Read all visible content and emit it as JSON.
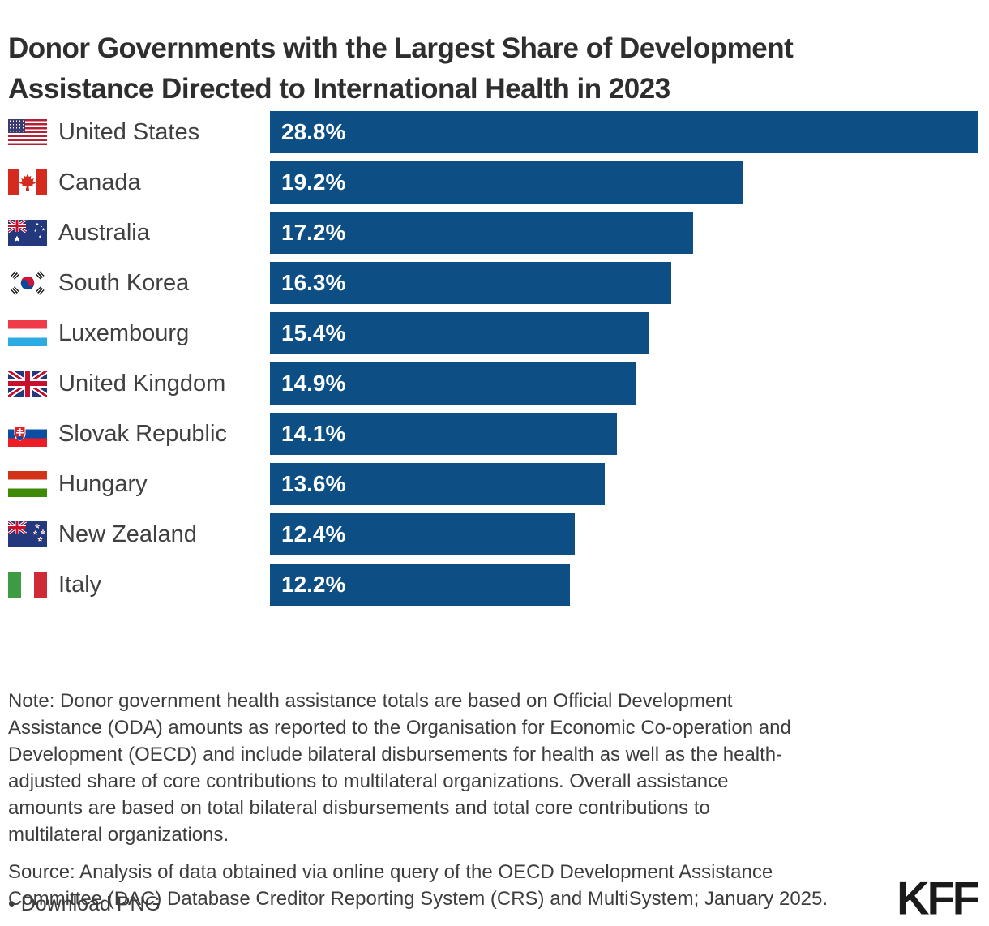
{
  "title": "Donor Governments with the Largest Share of Development\nAssistance Directed to International Health in 2023",
  "chart_data": {
    "type": "bar",
    "orientation": "horizontal",
    "title": "Donor Governments with the Largest Share of Development Assistance Directed to International Health in 2023",
    "unit": "%",
    "xlim": [
      0,
      28.8
    ],
    "grid": false,
    "legend": "none",
    "bar_color": "#0d4f84",
    "categories": [
      "United States",
      "Canada",
      "Australia",
      "South Korea",
      "Luxembourg",
      "United Kingdom",
      "Slovak Republic",
      "Hungary",
      "New Zealand",
      "Italy"
    ],
    "values": [
      28.8,
      19.2,
      17.2,
      16.3,
      15.4,
      14.9,
      14.1,
      13.6,
      12.4,
      12.2
    ],
    "rows": [
      {
        "country": "United States",
        "value": 28.8,
        "label": "28.8%",
        "flag": "us",
        "flag_icon": "united-states-flag-icon"
      },
      {
        "country": "Canada",
        "value": 19.2,
        "label": "19.2%",
        "flag": "ca",
        "flag_icon": "canada-flag-icon"
      },
      {
        "country": "Australia",
        "value": 17.2,
        "label": "17.2%",
        "flag": "au",
        "flag_icon": "australia-flag-icon"
      },
      {
        "country": "South Korea",
        "value": 16.3,
        "label": "16.3%",
        "flag": "kr",
        "flag_icon": "south-korea-flag-icon"
      },
      {
        "country": "Luxembourg",
        "value": 15.4,
        "label": "15.4%",
        "flag": "lu",
        "flag_icon": "luxembourg-flag-icon"
      },
      {
        "country": "United Kingdom",
        "value": 14.9,
        "label": "14.9%",
        "flag": "gb",
        "flag_icon": "united-kingdom-flag-icon"
      },
      {
        "country": "Slovak Republic",
        "value": 14.1,
        "label": "14.1%",
        "flag": "sk",
        "flag_icon": "slovak-republic-flag-icon"
      },
      {
        "country": "Hungary",
        "value": 13.6,
        "label": "13.6%",
        "flag": "hu",
        "flag_icon": "hungary-flag-icon"
      },
      {
        "country": "New Zealand",
        "value": 12.4,
        "label": "12.4%",
        "flag": "nz",
        "flag_icon": "new-zealand-flag-icon"
      },
      {
        "country": "Italy",
        "value": 12.2,
        "label": "12.2%",
        "flag": "it",
        "flag_icon": "italy-flag-icon"
      }
    ]
  },
  "note": "Note: Donor government health assistance totals are based on Official Development\nAssistance (ODA) amounts as reported to the Organisation for Economic Co-operation and\nDevelopment (OECD) and include bilateral disbursements for health as well as the health-\nadjusted share of core contributions to multilateral organizations. Overall assistance\namounts are based on total bilateral disbursements and total core contributions to\nmultilateral organizations.",
  "source": "Source: Analysis of data obtained via online query of the OECD Development Assistance\nCommittee (DAC) Database Creditor Reporting System (CRS) and MultiSystem; January 2025.",
  "download_label": "• Download PNG",
  "logo_text": "KFF",
  "colors": {
    "bar": "#0d4f84",
    "title_text": "#2e2e2e",
    "body_text": "#3d3d3d",
    "value_text": "#ffffff"
  }
}
